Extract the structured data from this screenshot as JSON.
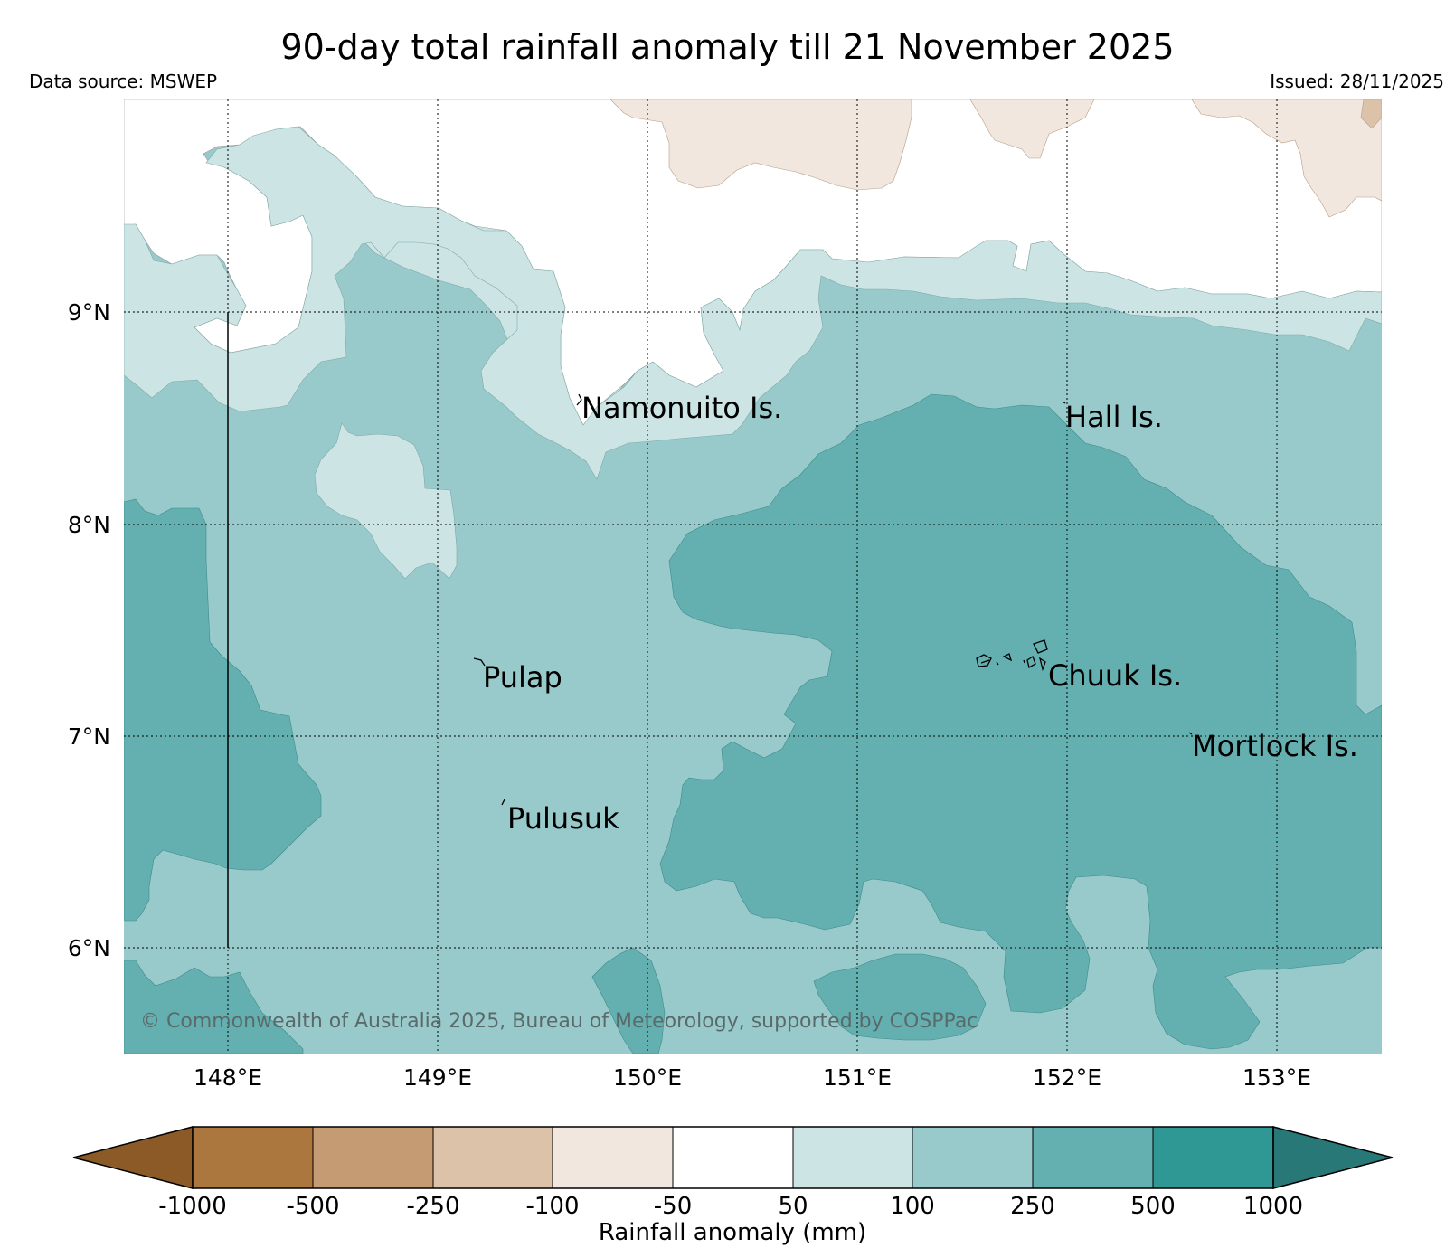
{
  "title": "90-day total rainfall anomaly till 21 November 2025",
  "data_source": "Data source: MSWEP",
  "issued": "Issued: 28/11/2025",
  "copyright": "© Commonwealth of Australia 2025, Bureau of Meteorology, supported by COSPPac",
  "map": {
    "lon_ticks": [
      "148°E",
      "149°E",
      "150°E",
      "151°E",
      "152°E",
      "153°E"
    ],
    "lat_ticks": [
      "9°N",
      "8°N",
      "7°N",
      "6°N"
    ],
    "places": [
      "Namonuito Is.",
      "Hall Is.",
      "Pulap",
      "Chuuk Is.",
      "Mortlock Is.",
      "Pulusuk"
    ]
  },
  "colorbar": {
    "label": "Rainfall anomaly (mm)",
    "ticks": [
      "-1000",
      "-500",
      "-250",
      "-100",
      "-50",
      "50",
      "100",
      "250",
      "500",
      "1000"
    ],
    "colors": {
      "lt_-1000": "#8c5a26",
      "-1000_-500": "#ac763f",
      "-500_-250": "#c49b72",
      "-250_-100": "#dbc2a8",
      "-100_-50": "#f1e7de",
      "-50_50": "#ffffff",
      "50_100": "#cce5e4",
      "100_250": "#99cacb",
      "250_500": "#64b0b1",
      "500_1000": "#2f9794",
      "gt_1000": "#287877"
    }
  }
}
